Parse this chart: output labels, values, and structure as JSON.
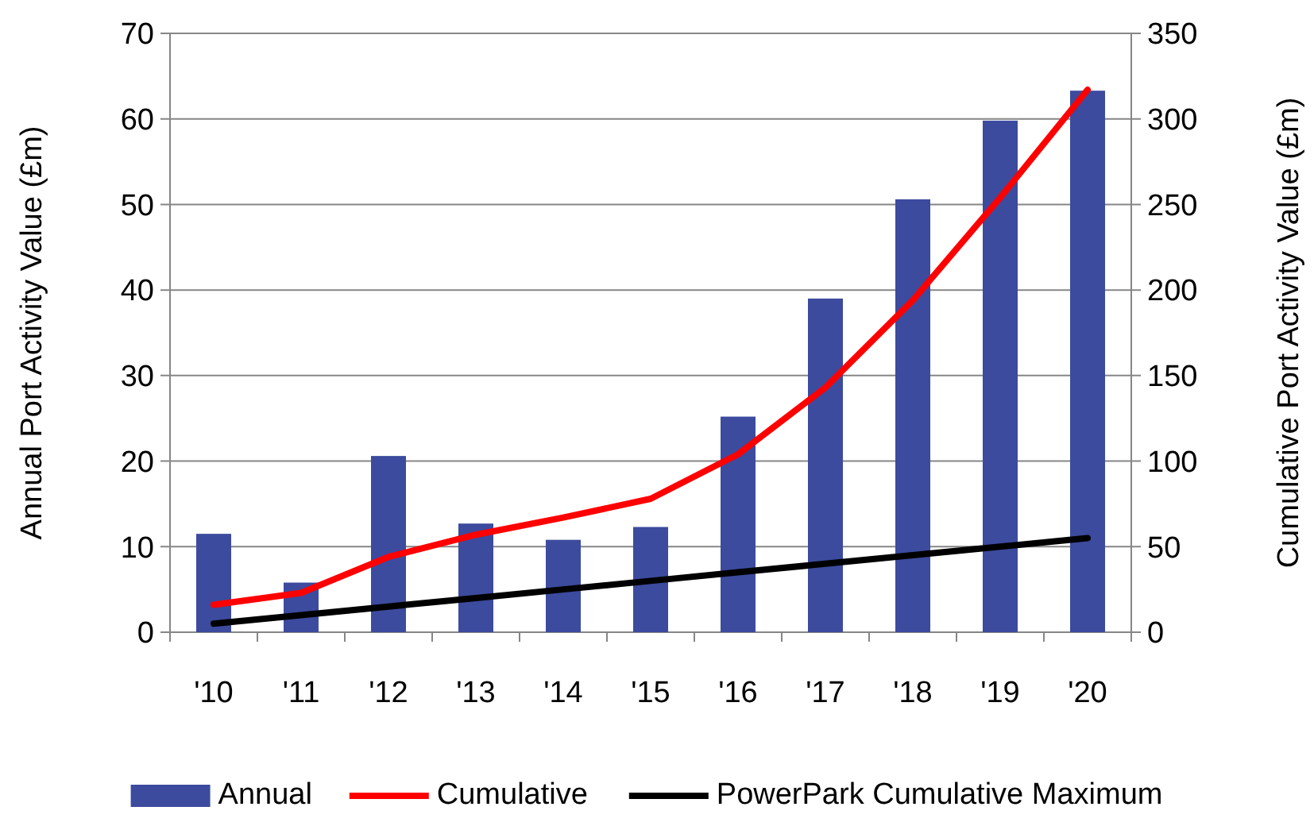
{
  "chart_data": {
    "type": "bar",
    "categories": [
      "'10",
      "'11",
      "'12",
      "'13",
      "'14",
      "'15",
      "'16",
      "'17",
      "'18",
      "'19",
      "'20"
    ],
    "series": [
      {
        "name": "Annual",
        "color": "#3c4b9e",
        "values": [
          11.5,
          5.8,
          20.6,
          12.7,
          10.8,
          12.3,
          25.2,
          39,
          50.6,
          59.8,
          63.3
        ]
      },
      {
        "name": "Cumulative",
        "type": "line",
        "axis": "y2",
        "color": "#ff0000",
        "values": [
          16,
          23,
          44,
          57,
          67,
          78,
          104,
          143,
          194,
          254,
          317
        ]
      },
      {
        "name": "PowerPark Cumulative Maximum",
        "type": "line",
        "axis": "y2",
        "color": "#000000",
        "values": [
          5,
          10,
          15,
          20,
          25,
          30,
          35,
          40,
          45,
          50,
          55
        ]
      }
    ],
    "ylabel": "Annual Port Activity Value (£m)",
    "y2label": "Cumulative Port Activity Value (£m)",
    "ylim": [
      0,
      70
    ],
    "yticks": [
      0,
      10,
      20,
      30,
      40,
      50,
      60,
      70
    ],
    "y2lim": [
      0,
      350
    ],
    "y2ticks": [
      0,
      50,
      100,
      150,
      200,
      250,
      300,
      350
    ],
    "grid": "y",
    "legend": "bottom",
    "marker": "none",
    "line_style": "solid"
  }
}
